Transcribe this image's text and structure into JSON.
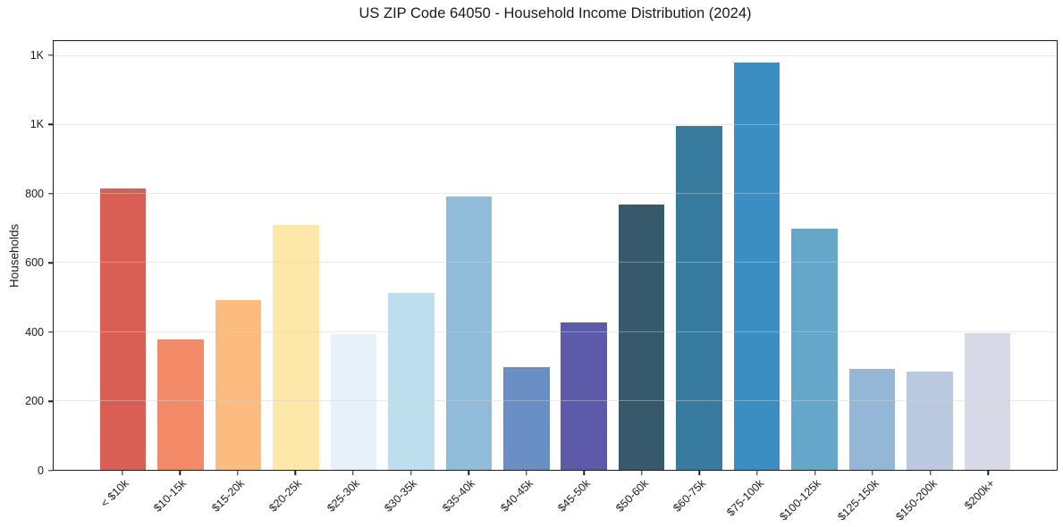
{
  "style": {
    "background": "#ffffff",
    "grid_color": "#e8e8e8",
    "spine_color": "#1c1c1c",
    "text_color": "#1a1a1a"
  },
  "chart_data": {
    "type": "bar",
    "title": "US ZIP Code 64050 - Household Income Distribution (2024)",
    "xlabel": "",
    "ylabel": "Households",
    "categories": [
      "< $10k",
      "$10-15k",
      "$15-20k",
      "$20-25k",
      "$25-30k",
      "$30-35k",
      "$35-40k",
      "$40-45k",
      "$45-50k",
      "$50-60k",
      "$60-75k",
      "$75-100k",
      "$100-125k",
      "$125-150k",
      "$150-200k",
      "$200k+"
    ],
    "values": [
      815,
      379,
      492,
      710,
      393,
      513,
      793,
      298,
      427,
      770,
      998,
      1182,
      700,
      292,
      284,
      395
    ],
    "bar_colors": [
      "#d95f55",
      "#f28a68",
      "#fcbc80",
      "#fde8a9",
      "#e7f2f8",
      "#bddfed",
      "#90bcda",
      "#6a8fc5",
      "#5c5aa9",
      "#36596b",
      "#377b9e",
      "#3a8ec2",
      "#64a7c9",
      "#95b7d7",
      "#bac9e0",
      "#d8d9e6"
    ],
    "ylim": [
      0,
      1243
    ],
    "yticks": [
      {
        "value": 0,
        "label": "0"
      },
      {
        "value": 200,
        "label": "200"
      },
      {
        "value": 400,
        "label": "400"
      },
      {
        "value": 600,
        "label": "600"
      },
      {
        "value": 800,
        "label": "800"
      },
      {
        "value": 1000,
        "label": "1K"
      },
      {
        "value": 1200,
        "label": "1K"
      }
    ],
    "grid": "horizontal",
    "legend": "none"
  }
}
